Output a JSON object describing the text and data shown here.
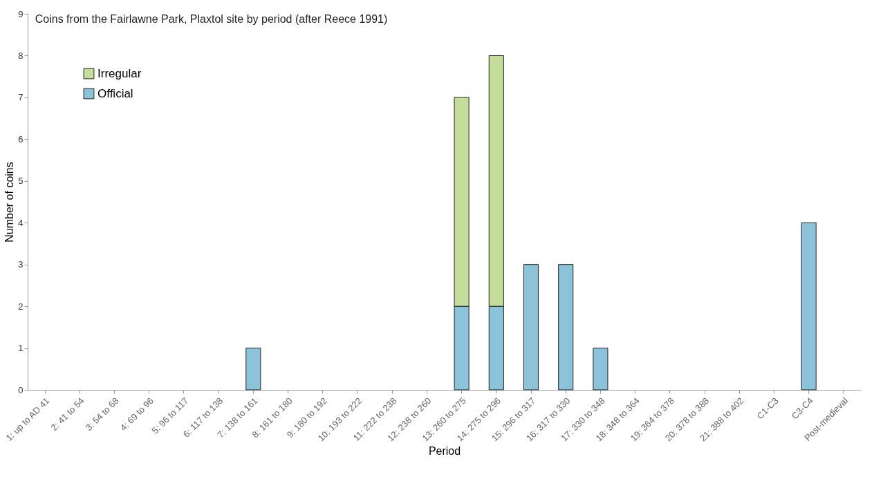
{
  "chart_data": {
    "type": "bar",
    "title": "Coins from the Fairlawne Park, Plaxtol site by period (after Reece 1991)",
    "xlabel": "Period",
    "ylabel": "Number of coins",
    "stacked": true,
    "legend": "top left",
    "grid": false,
    "categories": [
      "1: up to AD 41",
      "2: 41 to  54",
      "3: 54 to 68",
      "4: 69 to 96",
      "5: 96 to 117",
      "6: 117 to 138",
      "7: 138 to 161",
      "8: 161 to 180",
      "9: 180 to 192",
      "10: 193 to 222",
      "11: 222 to 238",
      "12: 238 to 260",
      "13: 260 to 275",
      "14: 275 to 296",
      "15: 296 to 317",
      "16: 317 to 330",
      "17: 330 to 348",
      "18: 348 to 364",
      "19: 364 to 378",
      "20: 378 to 388",
      "21: 388 to 402",
      "C1-C3",
      "C3-C4",
      "Post-medieval"
    ],
    "series": [
      {
        "name": "Official",
        "color": "#8cc3da",
        "values": [
          null,
          null,
          null,
          null,
          null,
          null,
          1,
          null,
          null,
          null,
          null,
          null,
          2,
          2,
          3,
          3,
          1,
          null,
          null,
          null,
          null,
          null,
          4,
          null
        ]
      },
      {
        "name": "Irregular",
        "color": "#c5dd9b",
        "values": [
          null,
          null,
          null,
          null,
          null,
          null,
          null,
          null,
          null,
          null,
          null,
          null,
          5,
          6,
          null,
          null,
          null,
          null,
          null,
          null,
          null,
          null,
          null,
          null
        ]
      }
    ],
    "ylim": [
      0,
      9
    ],
    "yticks": [
      0,
      1,
      2,
      3,
      4,
      5,
      6,
      7,
      8,
      9
    ]
  }
}
